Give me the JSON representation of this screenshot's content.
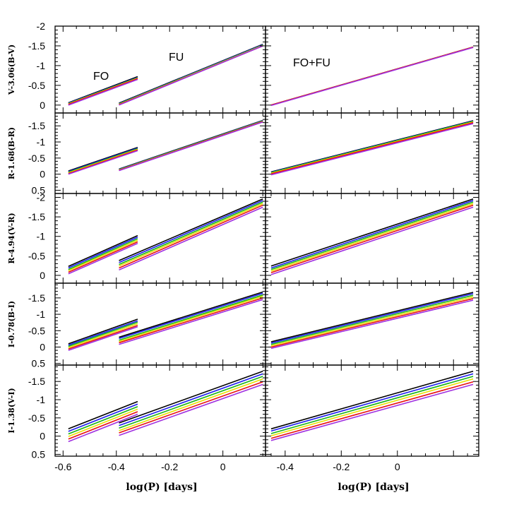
{
  "chart_data": {
    "type": "line",
    "xlabel": "log(P) [days]",
    "x_ticks": [
      -0.6,
      -0.4,
      -0.2,
      0
    ],
    "x_tick_labels": [
      "-0.6",
      "-0.4",
      "-0.2",
      "0"
    ],
    "xlim_left": [
      -0.63,
      0.16
    ],
    "xlim_right": [
      -0.47,
      0.29
    ],
    "series_colors": [
      "#000000",
      "#1c1cf0",
      "#16b416",
      "#e8e000",
      "#e81010",
      "#a030e0"
    ],
    "series_names": [
      "series-1",
      "series-2",
      "series-3",
      "series-4",
      "series-5",
      "series-6"
    ],
    "annotations": {
      "fo": "FO",
      "fu": "FU",
      "fofu": "FO+FU"
    },
    "rows": [
      {
        "ylabel": "V-3.06(B-V)",
        "ylim": [
          0.2,
          -2.0
        ],
        "y_ticks": [
          0,
          -0.5,
          -1,
          -1.5,
          -2
        ],
        "y_tick_labels": [
          "0",
          "-0.5",
          "-1",
          "-1.5",
          "-2"
        ],
        "left": {
          "fo": {
            "x": [
              -0.58,
              -0.32
            ],
            "lines": [
              [
                -0.06,
                -0.72
              ],
              [
                -0.05,
                -0.7
              ],
              [
                -0.04,
                -0.69
              ],
              [
                -0.03,
                -0.68
              ],
              [
                -0.02,
                -0.67
              ],
              [
                0.0,
                -0.65
              ]
            ]
          },
          "fu": {
            "x": [
              -0.39,
              0.15
            ],
            "lines": [
              [
                -0.05,
                -1.54
              ],
              [
                -0.04,
                -1.53
              ],
              [
                -0.03,
                -1.52
              ],
              [
                -0.02,
                -1.51
              ],
              [
                -0.01,
                -1.5
              ],
              [
                0.0,
                -1.5
              ]
            ]
          }
        },
        "right": {
          "x": [
            -0.45,
            0.27
          ],
          "lines": [
            [
              0.0,
              -1.47
            ],
            [
              0.0,
              -1.47
            ],
            [
              0.0,
              -1.47
            ],
            [
              0.0,
              -1.47
            ],
            [
              0.0,
              -1.47
            ],
            [
              0.01,
              -1.46
            ]
          ]
        }
      },
      {
        "ylabel": "R-1.68(B-R)",
        "ylim": [
          0.6,
          -1.9
        ],
        "y_ticks": [
          0.5,
          0,
          -0.5,
          -1,
          -1.5
        ],
        "y_tick_labels": [
          "0.5",
          "0",
          "-0.5",
          "-1",
          "-1.5"
        ],
        "left": {
          "fo": {
            "x": [
              -0.58,
              -0.32
            ],
            "lines": [
              [
                -0.1,
                -0.83
              ],
              [
                -0.08,
                -0.81
              ],
              [
                -0.06,
                -0.79
              ],
              [
                -0.04,
                -0.77
              ],
              [
                -0.02,
                -0.75
              ],
              [
                0.0,
                -0.73
              ]
            ]
          },
          "fu": {
            "x": [
              -0.39,
              0.15
            ],
            "lines": [
              [
                -0.16,
                -1.67
              ],
              [
                -0.15,
                -1.66
              ],
              [
                -0.14,
                -1.65
              ],
              [
                -0.13,
                -1.64
              ],
              [
                -0.12,
                -1.63
              ],
              [
                -0.11,
                -1.62
              ]
            ]
          }
        },
        "right": {
          "x": [
            -0.45,
            0.27
          ],
          "lines": [
            [
              -0.07,
              -1.66
            ],
            [
              -0.06,
              -1.65
            ],
            [
              -0.05,
              -1.64
            ],
            [
              -0.03,
              -1.62
            ],
            [
              -0.01,
              -1.6
            ],
            [
              0.02,
              -1.57
            ]
          ]
        }
      },
      {
        "ylabel": "R-4.94(V-R)",
        "ylim": [
          0.2,
          -2.1
        ],
        "y_ticks": [
          0,
          -0.5,
          -1,
          -1.5,
          -2
        ],
        "y_tick_labels": [
          "0",
          "-0.5",
          "-1",
          "-1.5",
          "-2"
        ],
        "left": {
          "fo": {
            "x": [
              -0.58,
              -0.32
            ],
            "lines": [
              [
                -0.23,
                -1.02
              ],
              [
                -0.19,
                -0.98
              ],
              [
                -0.15,
                -0.94
              ],
              [
                -0.12,
                -0.9
              ],
              [
                -0.08,
                -0.86
              ],
              [
                -0.04,
                -0.82
              ]
            ]
          },
          "fu": {
            "x": [
              -0.39,
              0.15
            ],
            "lines": [
              [
                -0.38,
                -1.96
              ],
              [
                -0.33,
                -1.92
              ],
              [
                -0.28,
                -1.88
              ],
              [
                -0.24,
                -1.84
              ],
              [
                -0.19,
                -1.8
              ],
              [
                -0.14,
                -1.75
              ]
            ]
          }
        },
        "right": {
          "x": [
            -0.45,
            0.27
          ],
          "lines": [
            [
              -0.24,
              -1.96
            ],
            [
              -0.19,
              -1.92
            ],
            [
              -0.15,
              -1.88
            ],
            [
              -0.11,
              -1.84
            ],
            [
              -0.07,
              -1.8
            ],
            [
              -0.02,
              -1.75
            ]
          ]
        }
      },
      {
        "ylabel": "I-0.78(B-I)",
        "ylim": [
          0.55,
          -1.95
        ],
        "y_ticks": [
          0.5,
          0,
          -0.5,
          -1,
          -1.5
        ],
        "y_tick_labels": [
          "0.5",
          "0",
          "-0.5",
          "-1",
          "-1.5"
        ],
        "left": {
          "fo": {
            "x": [
              -0.58,
              -0.32
            ],
            "lines": [
              [
                -0.1,
                -0.85
              ],
              [
                -0.06,
                -0.8
              ],
              [
                -0.02,
                -0.76
              ],
              [
                0.02,
                -0.71
              ],
              [
                0.06,
                -0.66
              ],
              [
                0.1,
                -0.62
              ]
            ]
          },
          "fu": {
            "x": [
              -0.39,
              0.15
            ],
            "lines": [
              [
                -0.3,
                -1.68
              ],
              [
                -0.26,
                -1.64
              ],
              [
                -0.21,
                -1.59
              ],
              [
                -0.17,
                -1.55
              ],
              [
                -0.13,
                -1.5
              ],
              [
                -0.08,
                -1.45
              ]
            ]
          }
        },
        "right": {
          "x": [
            -0.45,
            0.27
          ],
          "lines": [
            [
              -0.16,
              -1.67
            ],
            [
              -0.12,
              -1.63
            ],
            [
              -0.08,
              -1.58
            ],
            [
              -0.04,
              -1.53
            ],
            [
              0.0,
              -1.48
            ],
            [
              0.04,
              -1.43
            ]
          ]
        }
      },
      {
        "ylabel": "I-1.38(V-I)",
        "ylim": [
          0.55,
          -1.95
        ],
        "y_ticks": [
          0.5,
          0,
          -0.5,
          -1,
          -1.5
        ],
        "y_tick_labels": [
          "0.5",
          "0",
          "-0.5",
          "-1",
          "-1.5"
        ],
        "left": {
          "fo": {
            "x": [
              -0.58,
              -0.32
            ],
            "lines": [
              [
                -0.2,
                -0.95
              ],
              [
                -0.13,
                -0.88
              ],
              [
                -0.06,
                -0.81
              ],
              [
                0.01,
                -0.74
              ],
              [
                0.08,
                -0.67
              ],
              [
                0.15,
                -0.6
              ]
            ]
          },
          "fu": {
            "x": [
              -0.39,
              0.15
            ],
            "lines": [
              [
                -0.36,
                -1.78
              ],
              [
                -0.29,
                -1.71
              ],
              [
                -0.22,
                -1.64
              ],
              [
                -0.15,
                -1.57
              ],
              [
                -0.09,
                -1.49
              ],
              [
                -0.02,
                -1.42
              ]
            ]
          }
        },
        "right": {
          "x": [
            -0.45,
            0.27
          ],
          "lines": [
            [
              -0.2,
              -1.78
            ],
            [
              -0.14,
              -1.71
            ],
            [
              -0.07,
              -1.64
            ],
            [
              -0.01,
              -1.57
            ],
            [
              0.06,
              -1.49
            ],
            [
              0.12,
              -1.42
            ]
          ]
        }
      }
    ]
  }
}
